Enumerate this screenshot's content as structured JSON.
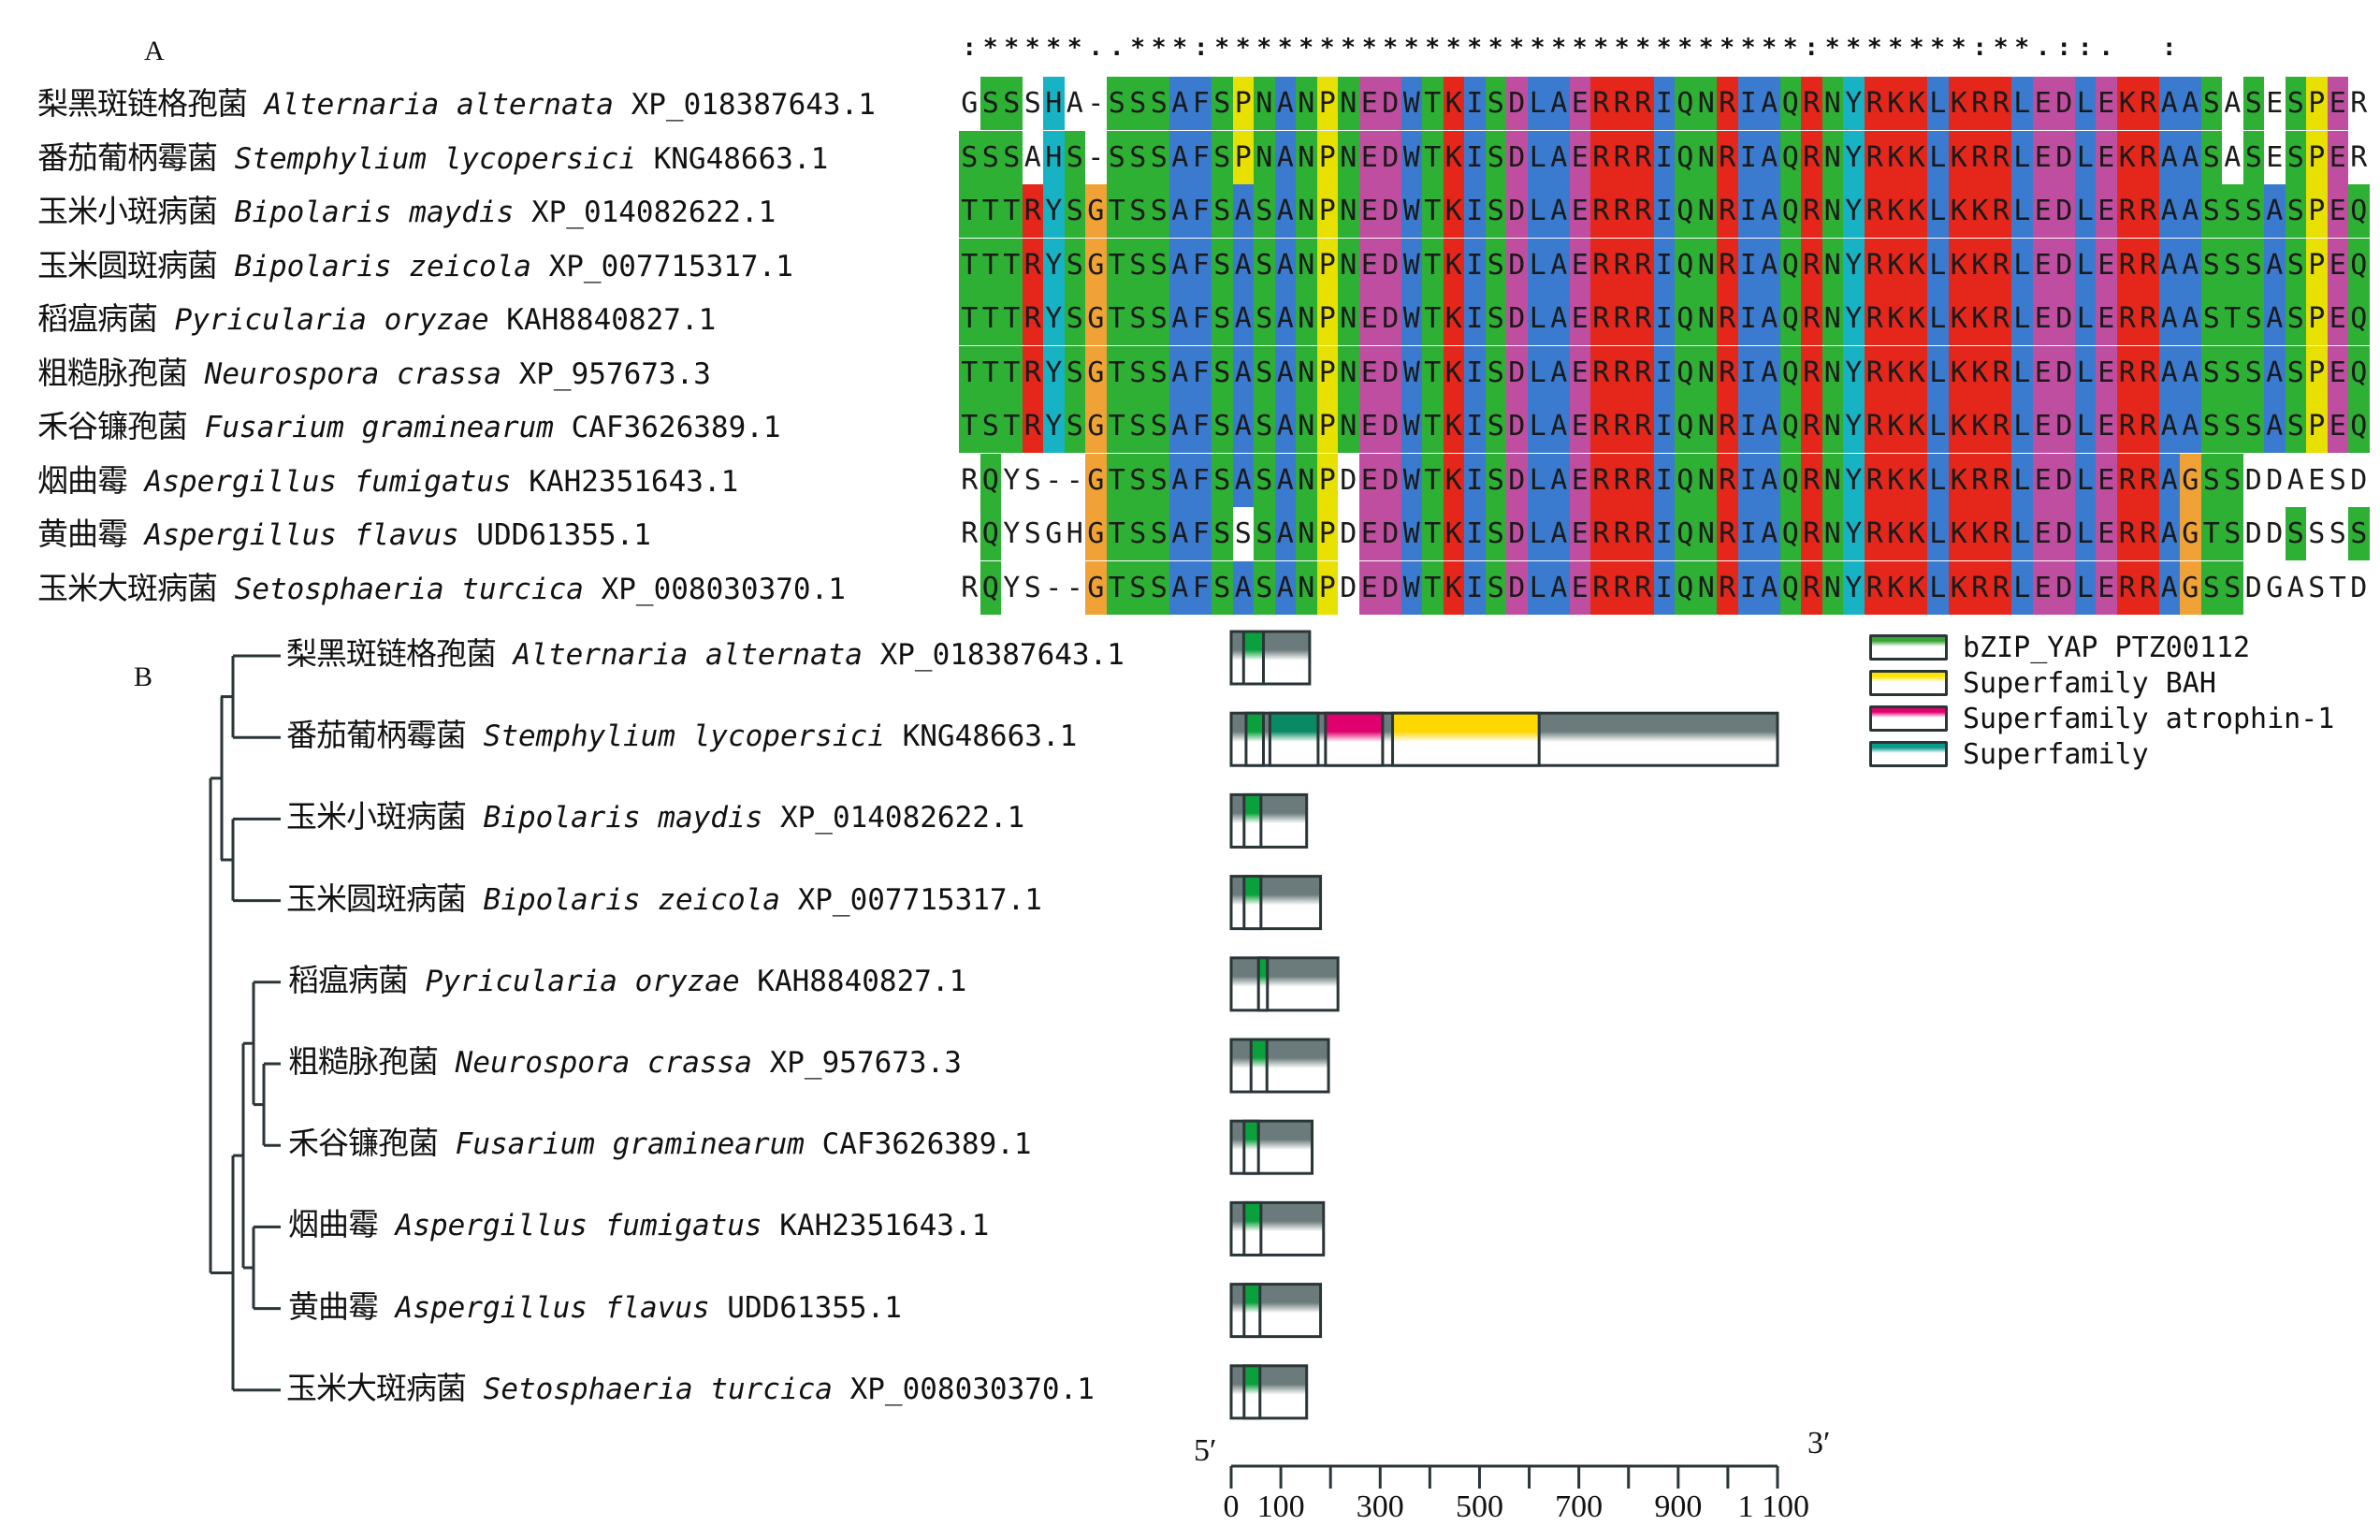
{
  "panels": {
    "a_label": "A",
    "b_label": "B"
  },
  "alignment": {
    "conservation": ":*****..***:****************************:*******:**.::.  : ",
    "sequences": [
      {
        "cn": "梨黑斑链格孢菌",
        "species": "Alternaria alternata",
        "accession": "XP_018387643.1",
        "seq": "GSSSHA-SSSAFSPNANPNEDWTKISDLAERRRIQNRIAQRNYRKKLKRRLEDLEKRAASASESPER"
      },
      {
        "cn": "番茄葡柄霉菌",
        "species": "Stemphylium lycopersici",
        "accession": "KNG48663.1",
        "seq": "SSSAHS-SSSAFSPNANPNEDWTKISDLAERRRIQNRIAQRNYRKKLKRRLEDLEKRAASASESPER"
      },
      {
        "cn": "玉米小斑病菌",
        "species": "Bipolaris maydis",
        "accession": "XP_014082622.1",
        "seq": "TTTRYSGTSSAFSASANPNEDWTKISDLAERRRIQNRIAQRNYRKKLKKRLEDLERRAASSSASPEQ"
      },
      {
        "cn": "玉米圆斑病菌",
        "species": "Bipolaris zeicola",
        "accession": "XP_007715317.1",
        "seq": "TTTRYSGTSSAFSASANPNEDWTKISDLAERRRIQNRIAQRNYRKKLKKRLEDLERRAASSSASPEQ"
      },
      {
        "cn": "稻瘟病菌",
        "species": "Pyricularia oryzae",
        "accession": "KAH8840827.1",
        "seq": "TTTRYSGTSSAFSASANPNEDWTKISDLAERRRIQNRIAQRNYRKKLKKRLEDLERRAASTSASPEQ"
      },
      {
        "cn": "粗糙脉孢菌",
        "species": "Neurospora crassa",
        "accession": "XP_957673.3",
        "seq": "TTTRYSGTSSAFSASANPNEDWTKISDLAERRRIQNRIAQRNYRKKLKKRLEDLERRAASSSASPEQ"
      },
      {
        "cn": "禾谷镰孢菌",
        "species": "Fusarium graminearum",
        "accession": "CAF3626389.1",
        "seq": "TSTRYSGTSSAFSASANPNEDWTKISDLAERRRIQNRIAQRNYRKKLKKRLEDLERRAASSSASPEQ"
      },
      {
        "cn": "烟曲霉",
        "species": "Aspergillus fumigatus",
        "accession": "KAH2351643.1",
        "seq": "RQYS--GTSSAFSASANPDEDWTKISDLAERRRIQNRIAQRNYRKKLKRRLEDLERRAGSSDDAESD"
      },
      {
        "cn": "黄曲霉",
        "species": "Aspergillus flavus",
        "accession": "UDD61355.1",
        "seq": "RQYSGHGTSSAFSSSANPDEDWTKISDLAERRRIQNRIAQRNYRKKLKKRLEDLERRAGTSDDSSSS"
      },
      {
        "cn": "玉米大斑病菌",
        "species": "Setosphaeria turcica",
        "accession": "XP_008030370.1",
        "seq": "RQYS--GTSSAFSASANPDEDWTKISDLAERRRIQNRIAQRNYRKKLKRRLEDLERRAGSSDGASTD"
      }
    ],
    "colors": {
      "green": "#2db034",
      "blue": "#3a7bd0",
      "red": "#e5261b",
      "magenta": "#c04ea0",
      "cyan": "#17b3c4",
      "yellow": "#e8e000",
      "orange": "#f0a236"
    }
  },
  "tree": {
    "leaves": [
      {
        "cn": "梨黑斑链格孢菌",
        "species": "Alternaria alternata",
        "accession": "XP_018387643.1"
      },
      {
        "cn": "番茄葡柄霉菌",
        "species": "Stemphylium lycopersici",
        "accession": "KNG48663.1"
      },
      {
        "cn": "玉米小斑病菌",
        "species": "Bipolaris maydis",
        "accession": "XP_014082622.1"
      },
      {
        "cn": "玉米圆斑病菌",
        "species": "Bipolaris zeicola",
        "accession": "XP_007715317.1"
      },
      {
        "cn": "稻瘟病菌",
        "species": "Pyricularia oryzae",
        "accession": "KAH8840827.1"
      },
      {
        "cn": "粗糙脉孢菌",
        "species": "Neurospora crassa",
        "accession": "XP_957673.3"
      },
      {
        "cn": "禾谷镰孢菌",
        "species": "Fusarium graminearum",
        "accession": "CAF3626389.1"
      },
      {
        "cn": "烟曲霉",
        "species": "Aspergillus fumigatus",
        "accession": "KAH2351643.1"
      },
      {
        "cn": "黄曲霉",
        "species": "Aspergillus flavus",
        "accession": "UDD61355.1"
      },
      {
        "cn": "玉米大斑病菌",
        "species": "Setosphaeria turcica",
        "accession": "XP_008030370.1"
      }
    ],
    "topology": "(((A,B),(C,D)),(((E,(F,G)),(H,I)),J))"
  },
  "domains": {
    "proteins": [
      {
        "length": 158,
        "domains": [
          {
            "type": "bZIP_YAP",
            "start": 25,
            "end": 65
          }
        ]
      },
      {
        "length": 1100,
        "domains": [
          {
            "type": "bZIP_YAP",
            "start": 30,
            "end": 65
          },
          {
            "type": "Superfamily",
            "start": 78,
            "end": 175
          },
          {
            "type": "atrophin-1",
            "start": 190,
            "end": 305
          },
          {
            "type": "BAH",
            "start": 325,
            "end": 620
          }
        ]
      },
      {
        "length": 152,
        "domains": [
          {
            "type": "bZIP_YAP",
            "start": 26,
            "end": 60
          }
        ]
      },
      {
        "length": 180,
        "domains": [
          {
            "type": "bZIP_YAP",
            "start": 26,
            "end": 60
          }
        ]
      },
      {
        "length": 215,
        "domains": [
          {
            "type": "bZIP_YAP",
            "start": 55,
            "end": 73
          }
        ]
      },
      {
        "length": 196,
        "domains": [
          {
            "type": "bZIP_YAP",
            "start": 40,
            "end": 72
          }
        ]
      },
      {
        "length": 163,
        "domains": [
          {
            "type": "bZIP_YAP",
            "start": 26,
            "end": 55
          }
        ]
      },
      {
        "length": 186,
        "domains": [
          {
            "type": "bZIP_YAP",
            "start": 26,
            "end": 60
          }
        ]
      },
      {
        "length": 180,
        "domains": [
          {
            "type": "bZIP_YAP",
            "start": 26,
            "end": 58
          }
        ]
      },
      {
        "length": 152,
        "domains": [
          {
            "type": "bZIP_YAP",
            "start": 26,
            "end": 58
          }
        ]
      }
    ],
    "legend": [
      {
        "type": "bZIP_YAP",
        "label": "bZIP_YAP PTZ00112",
        "color": "#3aa335"
      },
      {
        "type": "BAH",
        "label": "Superfamily BAH",
        "color": "#ffe400"
      },
      {
        "type": "atrophin-1",
        "label": "Superfamily atrophin-1",
        "color": "#e0006e"
      },
      {
        "type": "Superfamily",
        "label": "Superfamily",
        "color": "#0a9a8c"
      }
    ],
    "axis": {
      "five_prime": "5′",
      "three_prime": "3′",
      "min": 0,
      "max": 1100,
      "minor_step": 100,
      "tick_labels": [
        "0",
        "100",
        "300",
        "500",
        "700",
        "900",
        "1 100"
      ],
      "tick_values": [
        0,
        100,
        300,
        500,
        700,
        900,
        1100
      ]
    }
  }
}
